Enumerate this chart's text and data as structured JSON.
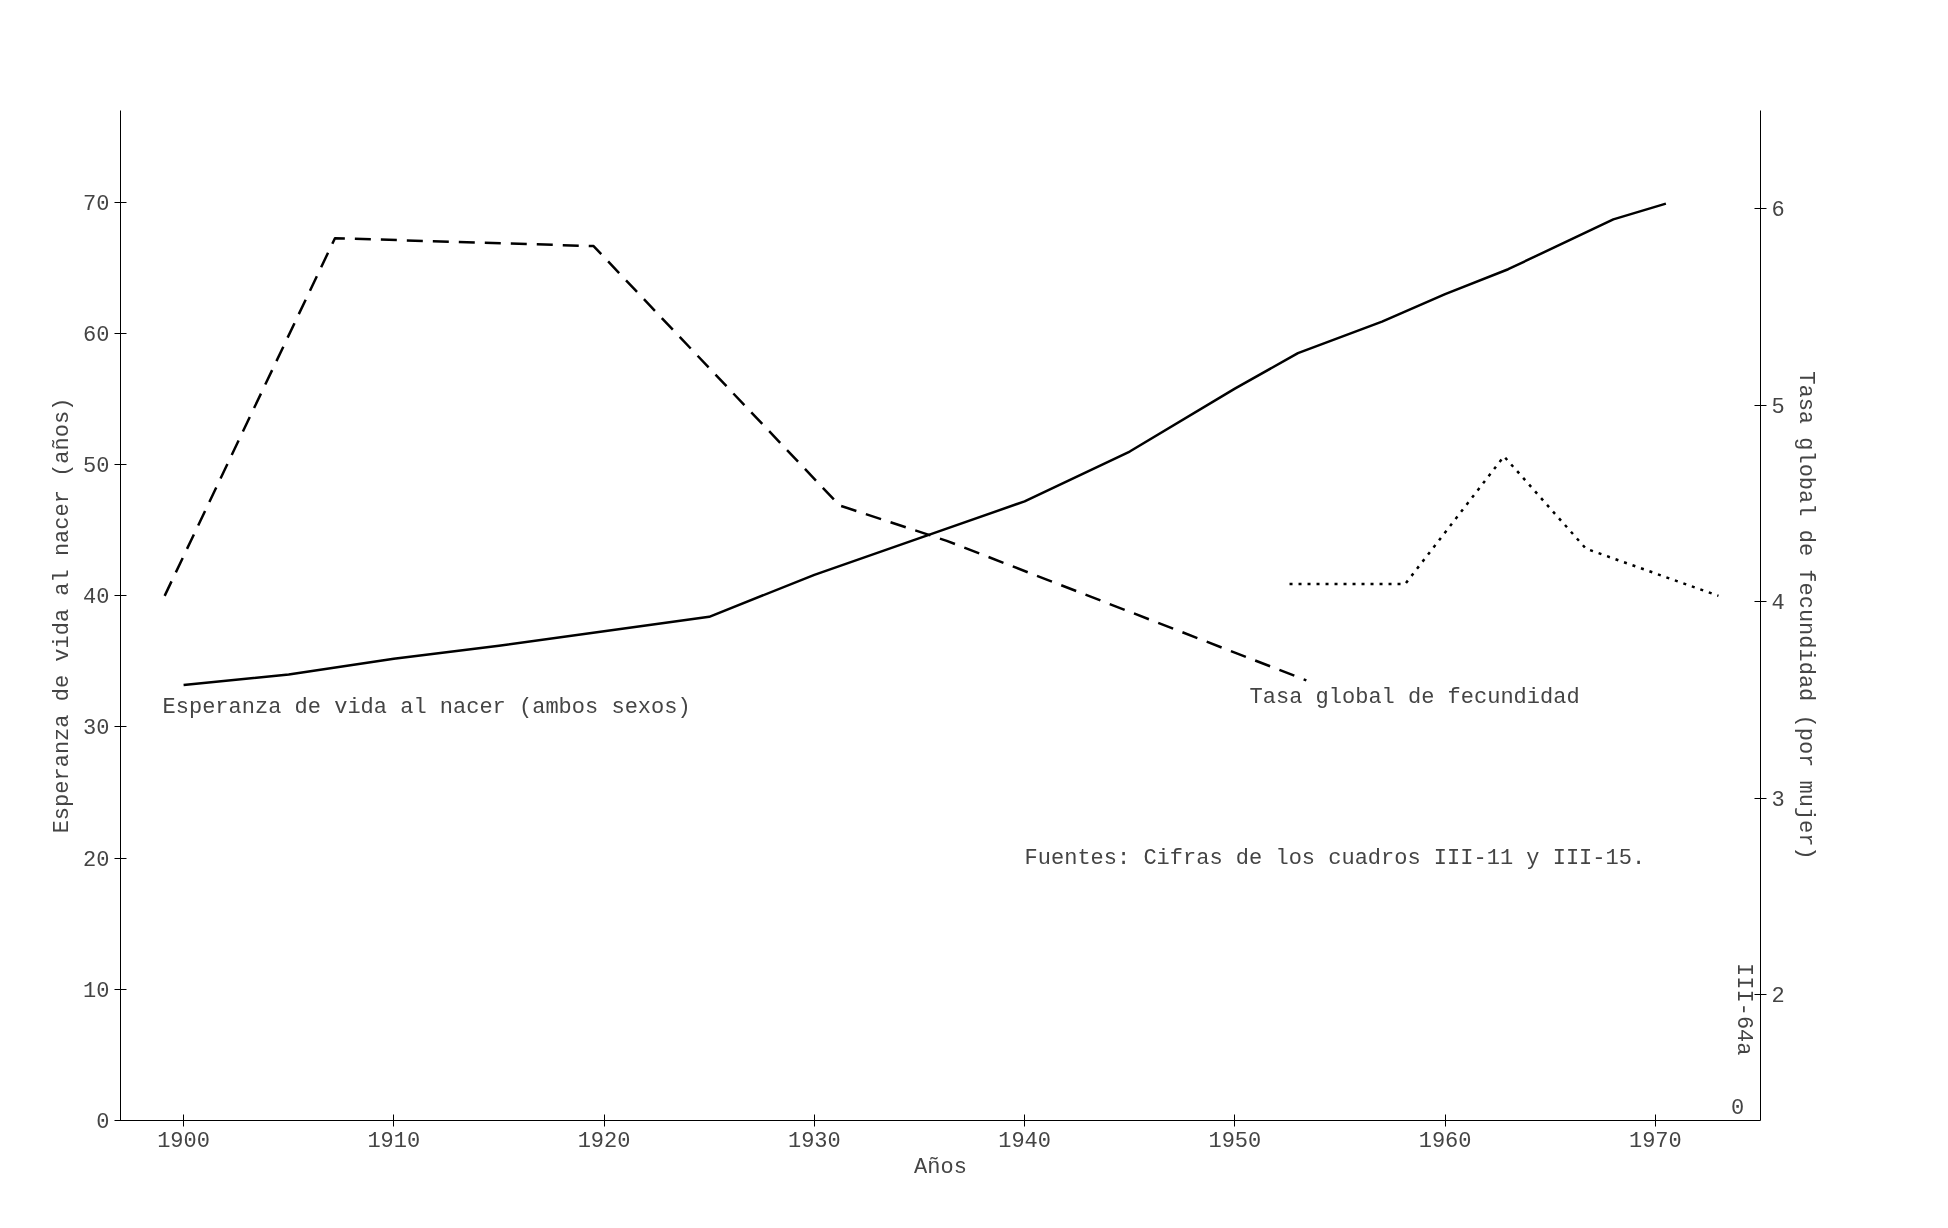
{
  "chart_data": {
    "type": "line",
    "ylabel": "Esperanza de vida al nacer (años)",
    "y2label": "Tasa global de fecundidad (por mujer)",
    "xlabel": "Años",
    "xlim": [
      1897,
      1975
    ],
    "xticks": [
      1900,
      1910,
      1920,
      1930,
      1940,
      1950,
      1960,
      1970
    ],
    "ylim": [
      0,
      77
    ],
    "yticks": [
      0,
      10,
      20,
      30,
      40,
      50,
      60,
      70
    ],
    "y2lim": [
      1.36,
      6.5
    ],
    "y2ticks": [
      2,
      3,
      4,
      5,
      6
    ],
    "marker": "none",
    "series": [
      {
        "color": "#000000",
        "line_style": "solid",
        "x": [
          1900,
          1905,
          1910,
          1915,
          1920,
          1925,
          1930,
          1935,
          1940,
          1945,
          1950,
          1953,
          1957,
          1960,
          1963,
          1968,
          1970.5
        ],
        "values": [
          33.2,
          34.0,
          35.2,
          36.2,
          37.3,
          38.4,
          41.6,
          44.4,
          47.2,
          51.0,
          55.8,
          58.5,
          60.9,
          63.0,
          64.9,
          68.7,
          69.9
        ]
      },
      {
        "color": "#000000",
        "line_style": "dashed",
        "axis": "y2",
        "x": [
          1899.1,
          1907.2,
          1919.5,
          1931.2,
          1936.3,
          1953.4
        ],
        "values": [
          4.03,
          5.85,
          5.81,
          4.49,
          4.31,
          3.6
        ]
      },
      {
        "color": "#000000",
        "line_style": "dotted",
        "axis": "y2",
        "x": [
          1952.6,
          1958.1,
          1962.8,
          1966.7,
          1973.0
        ],
        "values": [
          4.09,
          4.09,
          4.74,
          4.27,
          4.03
        ]
      }
    ],
    "annotations": [
      "Esperanza de vida al nacer (ambos sexos)",
      "Tasa global de fecundidad",
      "Fuentes: Cifras de los cuadros III-11 y III-15.",
      "III-64a",
      "0"
    ]
  }
}
